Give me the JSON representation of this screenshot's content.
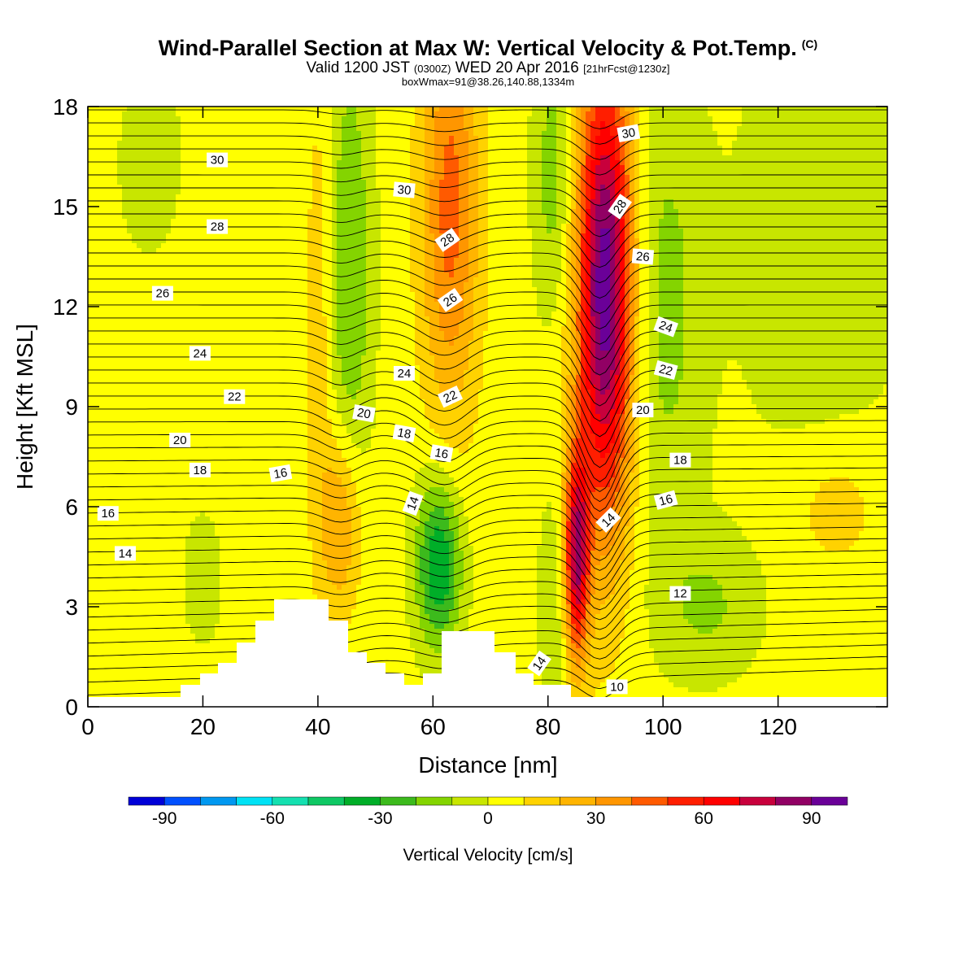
{
  "chart_title": {
    "main": "Wind-Parallel Section at Max W: Vertical Velocity & Pot.Temp.",
    "copyright": "(C)",
    "valid_prefix": "Valid 1200 JST",
    "valid_z": "(0300Z)",
    "valid_date": "WED 20 Apr 2016",
    "forecast": "[21hrFcst@1230z]",
    "box_info": "boxWmax=91@38.26,140.88,1334m"
  },
  "colors": {
    "scale": [
      "#0000d8",
      "#0050ff",
      "#0098f0",
      "#00e2f5",
      "#14e0b0",
      "#0ec864",
      "#00ae28",
      "#3cba1c",
      "#84d400",
      "#c8e600",
      "#ffff00",
      "#ffd200",
      "#ffb400",
      "#ff9600",
      "#ff5a00",
      "#ff1e00",
      "#ff0000",
      "#c8003c",
      "#910064",
      "#6a0098"
    ],
    "background": "#ffffff",
    "terrain": "#ffffff"
  },
  "chart_data": {
    "type": "heatmap",
    "xlabel": "Distance [nm]",
    "ylabel": "Height [Kft MSL]",
    "xlim": [
      0,
      139
    ],
    "ylim": [
      0,
      18
    ],
    "x_ticks": [
      "0",
      "20",
      "40",
      "60",
      "80",
      "100",
      "120"
    ],
    "y_ticks": [
      "0",
      "3",
      "6",
      "9",
      "12",
      "15",
      "18"
    ],
    "colorbar": {
      "label": "Vertical Velocity [cm/s]",
      "ticks": [
        "-90",
        "-60",
        "-30",
        "0",
        "30",
        "60",
        "90"
      ],
      "range": [
        -100,
        100
      ],
      "step": 10
    },
    "velocity_features": [
      {
        "x": 90,
        "y": 12.5,
        "sx": 3.5,
        "sy": 5.0,
        "v": 95
      },
      {
        "x": 85,
        "y": 4.5,
        "sx": 1.5,
        "sy": 2.2,
        "v": 75
      },
      {
        "x": 63,
        "y": 15,
        "sx": 3.5,
        "sy": 4.5,
        "v": 40
      },
      {
        "x": 44,
        "y": 5.5,
        "sx": 2.5,
        "sy": 2.0,
        "v": 30
      },
      {
        "x": 40.5,
        "y": 12,
        "sx": 1.5,
        "sy": 5.0,
        "v": 12
      },
      {
        "x": 61,
        "y": 4.3,
        "sx": 2.8,
        "sy": 1.8,
        "v": -45
      },
      {
        "x": 45.5,
        "y": 13,
        "sx": 2.8,
        "sy": 5.0,
        "v": -25
      },
      {
        "x": 81,
        "y": 3,
        "sx": 2.0,
        "sy": 2.5,
        "v": -12
      },
      {
        "x": 81,
        "y": 16,
        "sx": 2.5,
        "sy": 3.0,
        "v": -20
      },
      {
        "x": 100,
        "y": 12,
        "sx": 5.0,
        "sy": 5.0,
        "v": -18
      },
      {
        "x": 108,
        "y": 3,
        "sx": 6.0,
        "sy": 1.5,
        "v": -15
      },
      {
        "x": 127,
        "y": 14,
        "sx": 10.0,
        "sy": 5.0,
        "v": -12
      },
      {
        "x": 130,
        "y": 6,
        "sx": 6.0,
        "sy": 1.5,
        "v": 12
      },
      {
        "x": 20,
        "y": 4,
        "sx": 2.5,
        "sy": 1.5,
        "v": -15
      },
      {
        "x": 12,
        "y": 16,
        "sx": 6.0,
        "sy": 3.0,
        "v": -10
      },
      {
        "x": 24,
        "y": 12,
        "sx": 12.0,
        "sy": 6.0,
        "v": 6
      }
    ],
    "theta_labels": [
      {
        "text": "30",
        "x": 22.5,
        "y": 16.4,
        "rot": 0
      },
      {
        "text": "28",
        "x": 22.5,
        "y": 14.4,
        "rot": 0
      },
      {
        "text": "26",
        "x": 13,
        "y": 12.4,
        "rot": 0
      },
      {
        "text": "24",
        "x": 19.5,
        "y": 10.6,
        "rot": 0
      },
      {
        "text": "22",
        "x": 25.5,
        "y": 9.3,
        "rot": 0
      },
      {
        "text": "20",
        "x": 16,
        "y": 8.0,
        "rot": 0
      },
      {
        "text": "18",
        "x": 19.5,
        "y": 7.1,
        "rot": 0
      },
      {
        "text": "16",
        "x": 3.5,
        "y": 5.8,
        "rot": 0
      },
      {
        "text": "14",
        "x": 6.5,
        "y": 4.6,
        "rot": 0
      },
      {
        "text": "16",
        "x": 33.5,
        "y": 7.0,
        "rot": -10
      },
      {
        "text": "30",
        "x": 55,
        "y": 15.5,
        "rot": 5
      },
      {
        "text": "28",
        "x": 62.5,
        "y": 14.0,
        "rot": -35
      },
      {
        "text": "26",
        "x": 63,
        "y": 12.2,
        "rot": -35
      },
      {
        "text": "24",
        "x": 55,
        "y": 10.0,
        "rot": 0
      },
      {
        "text": "22",
        "x": 63,
        "y": 9.3,
        "rot": -25
      },
      {
        "text": "20",
        "x": 48,
        "y": 8.8,
        "rot": 10
      },
      {
        "text": "18",
        "x": 55,
        "y": 8.2,
        "rot": 10
      },
      {
        "text": "16",
        "x": 61.5,
        "y": 7.6,
        "rot": 10
      },
      {
        "text": "14",
        "x": 56.5,
        "y": 6.1,
        "rot": -70
      },
      {
        "text": "30",
        "x": 94,
        "y": 17.2,
        "rot": -10
      },
      {
        "text": "28",
        "x": 92.5,
        "y": 15.0,
        "rot": -55
      },
      {
        "text": "26",
        "x": 96.5,
        "y": 13.5,
        "rot": 5
      },
      {
        "text": "24",
        "x": 100.5,
        "y": 11.4,
        "rot": 20
      },
      {
        "text": "22",
        "x": 100.5,
        "y": 10.1,
        "rot": 15
      },
      {
        "text": "20",
        "x": 96.5,
        "y": 8.9,
        "rot": 0
      },
      {
        "text": "18",
        "x": 103,
        "y": 7.4,
        "rot": 0
      },
      {
        "text": "16",
        "x": 100.5,
        "y": 6.2,
        "rot": -15
      },
      {
        "text": "14",
        "x": 90.5,
        "y": 5.6,
        "rot": -45
      },
      {
        "text": "12",
        "x": 103,
        "y": 3.4,
        "rot": 0
      },
      {
        "text": "14",
        "x": 78.5,
        "y": 1.3,
        "rot": -55
      },
      {
        "text": "10",
        "x": 92,
        "y": 0.6,
        "rot": 0
      }
    ]
  }
}
